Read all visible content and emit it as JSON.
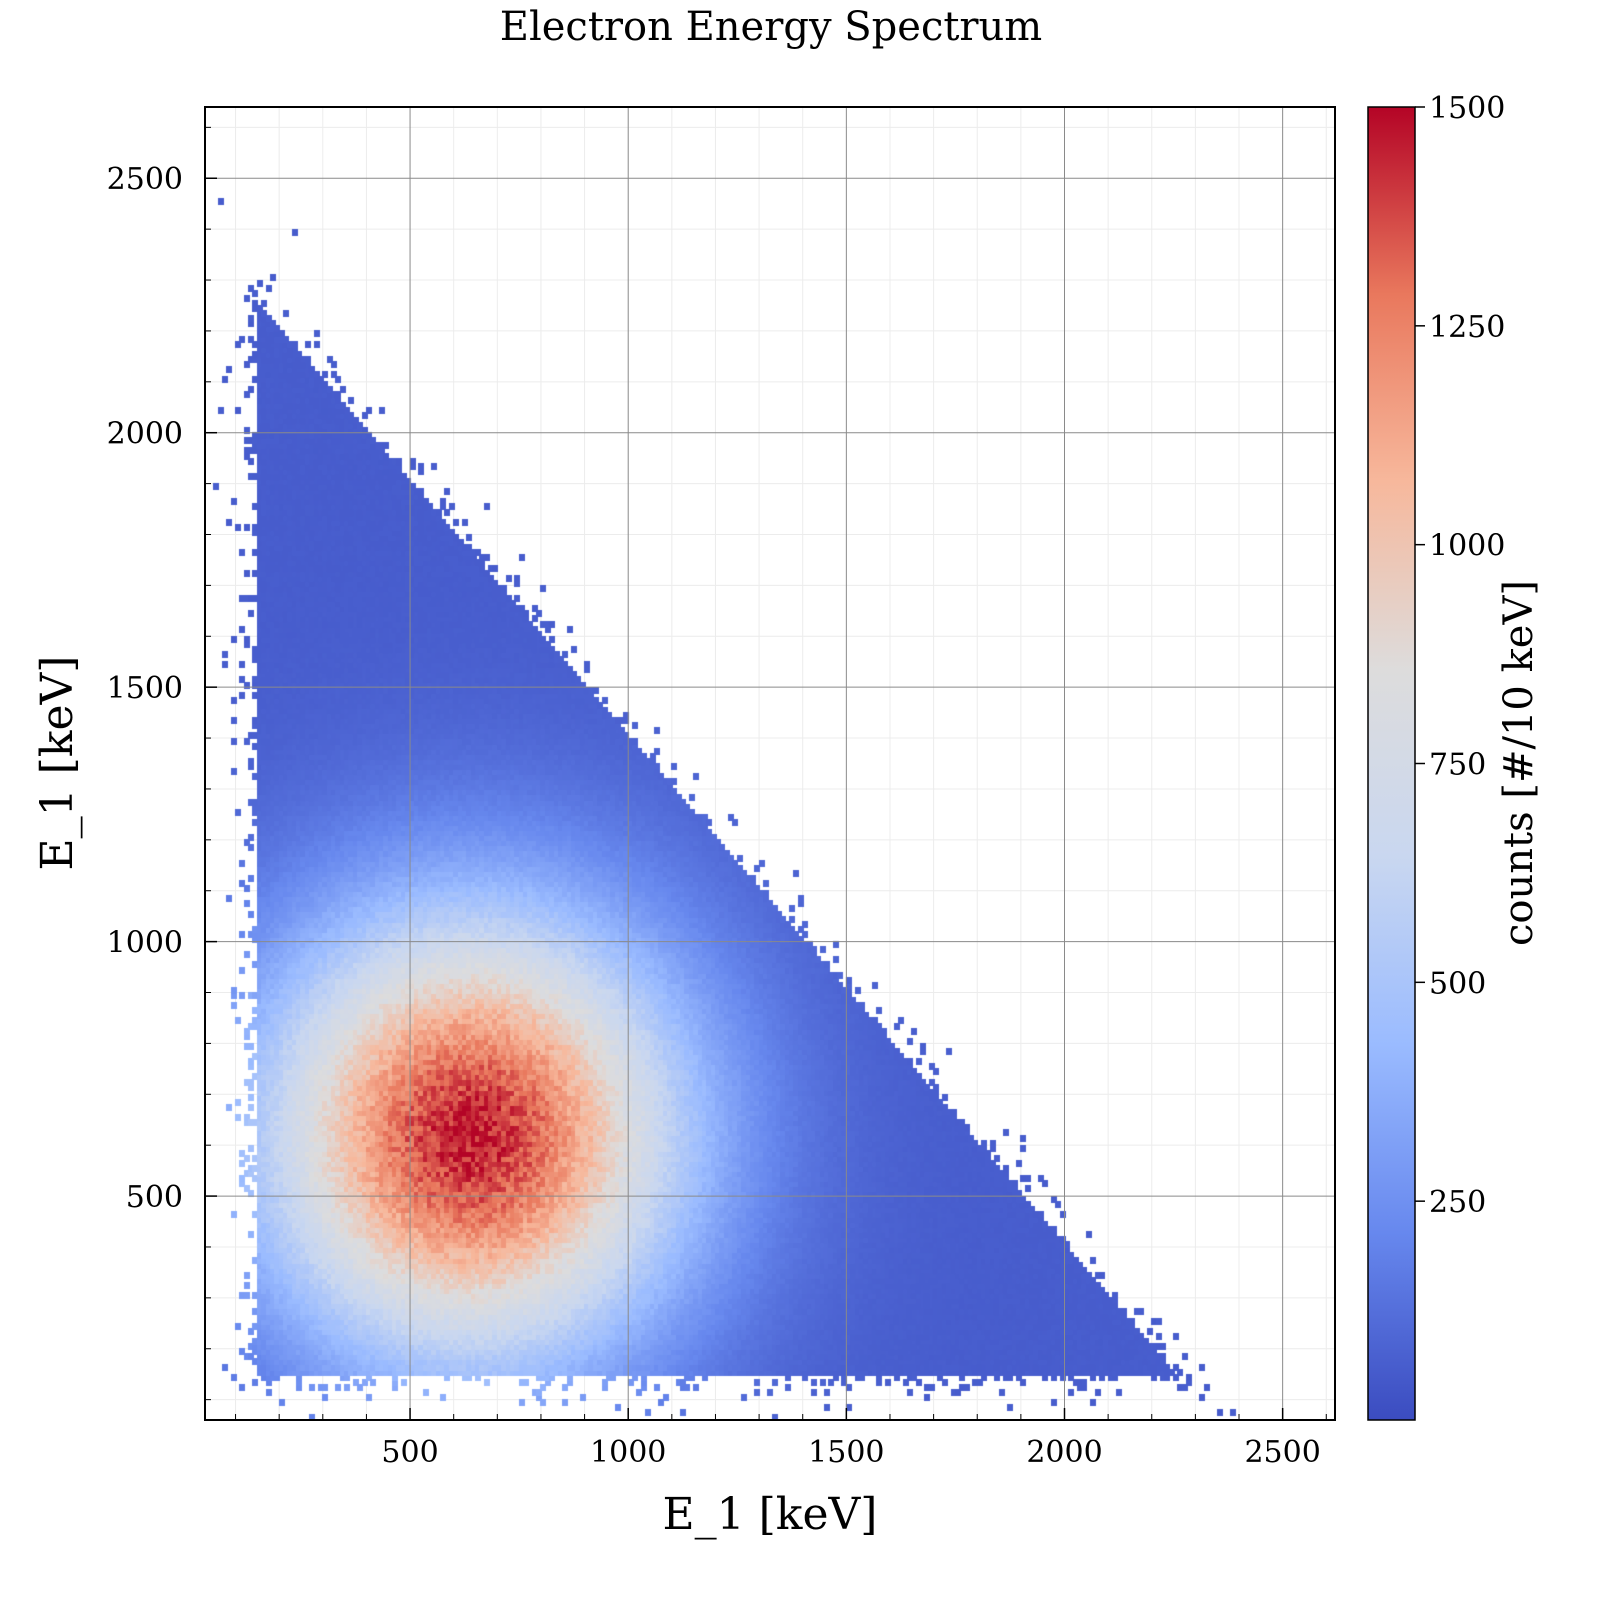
{
  "chart_data": {
    "type": "heatmap",
    "title": "Electron Energy Spectrum",
    "xlabel": "E_1 [keV]",
    "ylabel": "E_1 [keV]",
    "xlim": [
      30,
      2620
    ],
    "ylim": [
      60,
      2640
    ],
    "x_ticks": [
      500,
      1000,
      1500,
      2000,
      2500
    ],
    "y_ticks": [
      500,
      1000,
      1500,
      2000,
      2500
    ],
    "x_tick_labels": [
      "500",
      "1000",
      "1500",
      "2000",
      "2500"
    ],
    "y_tick_labels": [
      "500",
      "1000",
      "1500",
      "2000",
      "2500"
    ],
    "bin_width": 10,
    "grid": true,
    "colormap": "coolwarm",
    "colormap_stops": [
      "#3b4cc0",
      "#6788ee",
      "#9abbff",
      "#c9d7f0",
      "#dddcdc",
      "#f7b89c",
      "#e9785d",
      "#b40426"
    ],
    "colorbar": {
      "label": "counts [#/10 keV]",
      "range": [
        0,
        1500
      ],
      "ticks": [
        250,
        500,
        750,
        1000,
        1250,
        1500
      ],
      "tick_labels": [
        "250",
        "500",
        "750",
        "1000",
        "1250",
        "1500"
      ]
    },
    "distribution": {
      "support_vertices": [
        [
          150,
          150
        ],
        [
          150,
          2340
        ],
        [
          2250,
          150
        ]
      ],
      "peak": [
        640,
        620
      ],
      "peak_counts": 1450,
      "background_counts": 60
    }
  }
}
